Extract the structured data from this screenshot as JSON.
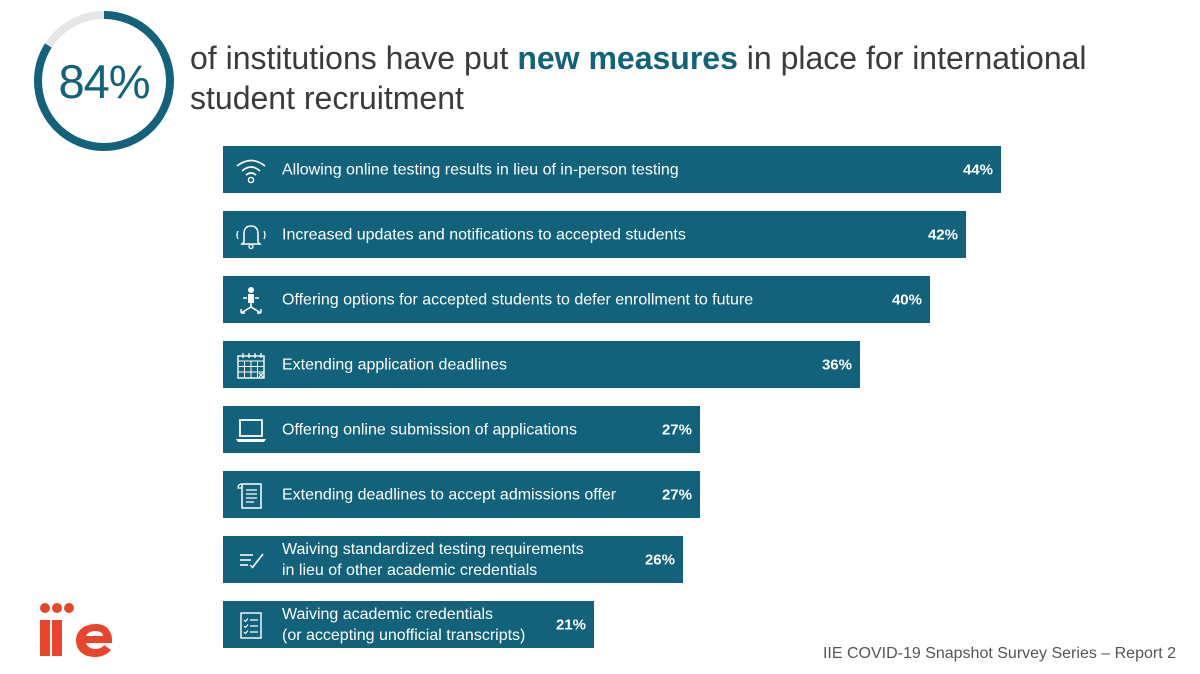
{
  "header": {
    "percent": "84%",
    "percent_value": 84,
    "text_part1": "of institutions have put ",
    "text_highlight": "new measures",
    "text_part2": " in place for international student recruitment"
  },
  "chart_data": {
    "type": "bar",
    "orientation": "horizontal",
    "categories": [
      "Allowing online testing results in lieu of in-person testing",
      "Increased updates and notifications to accepted students",
      "Offering options for accepted students to defer enrollment to future",
      "Extending application deadlines",
      "Offering online submission of applications",
      "Extending deadlines to accept admissions offer",
      "Waiving standardized testing requirements\nin lieu of other academic credentials",
      "Waiving academic credentials\n(or accepting unofficial transcripts)"
    ],
    "values": [
      44,
      42,
      40,
      36,
      27,
      27,
      26,
      21
    ],
    "value_labels": [
      "44%",
      "42%",
      "40%",
      "36%",
      "27%",
      "27%",
      "26%",
      "21%"
    ],
    "icons": [
      "wifi-icon",
      "bell-icon",
      "person-arrows-icon",
      "calendar-icon",
      "laptop-icon",
      "document-icon",
      "checklist-pen-icon",
      "checklist-icon"
    ],
    "unit": "%",
    "bar_color": "#11627a"
  },
  "branding": {
    "logo_text": "iie",
    "logo_color": "#e8452c",
    "footer": "IIE COVID-19 Snapshot Survey Series – Report 2"
  },
  "colors": {
    "accent": "#11627a",
    "ring_track": "#e6e6e6"
  }
}
